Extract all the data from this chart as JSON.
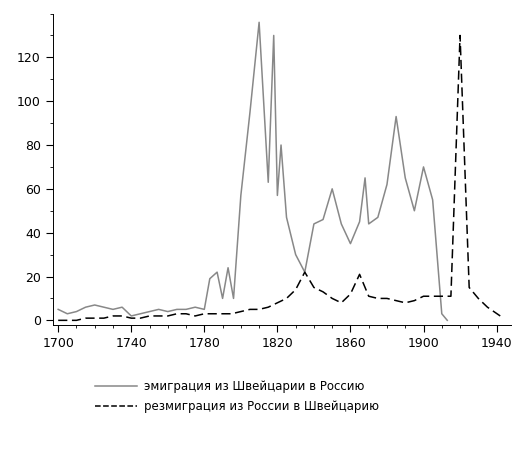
{
  "emigration_x": [
    1700,
    1705,
    1710,
    1715,
    1720,
    1725,
    1730,
    1735,
    1740,
    1745,
    1750,
    1755,
    1760,
    1765,
    1770,
    1775,
    1780,
    1783,
    1787,
    1790,
    1793,
    1796,
    1800,
    1805,
    1810,
    1815,
    1818,
    1820,
    1822,
    1825,
    1830,
    1835,
    1840,
    1845,
    1850,
    1855,
    1860,
    1865,
    1868,
    1870,
    1875,
    1880,
    1885,
    1890,
    1895,
    1900,
    1905,
    1910,
    1913
  ],
  "emigration_y": [
    5,
    3,
    4,
    6,
    7,
    6,
    5,
    6,
    2,
    3,
    4,
    5,
    4,
    5,
    5,
    6,
    5,
    19,
    22,
    10,
    24,
    10,
    57,
    95,
    136,
    63,
    130,
    57,
    80,
    47,
    30,
    22,
    44,
    46,
    60,
    44,
    35,
    45,
    65,
    44,
    47,
    62,
    93,
    65,
    50,
    70,
    55,
    3,
    0
  ],
  "remigration_x": [
    1700,
    1705,
    1710,
    1715,
    1720,
    1725,
    1730,
    1735,
    1740,
    1745,
    1750,
    1755,
    1760,
    1765,
    1770,
    1775,
    1780,
    1785,
    1790,
    1795,
    1800,
    1805,
    1810,
    1815,
    1820,
    1825,
    1830,
    1835,
    1840,
    1845,
    1850,
    1855,
    1860,
    1865,
    1870,
    1875,
    1880,
    1885,
    1890,
    1895,
    1900,
    1905,
    1910,
    1915,
    1920,
    1925,
    1930,
    1935,
    1942
  ],
  "remigration_y": [
    0,
    0,
    0,
    1,
    1,
    1,
    2,
    2,
    1,
    1,
    2,
    2,
    2,
    3,
    3,
    2,
    3,
    3,
    3,
    3,
    4,
    5,
    5,
    6,
    8,
    10,
    14,
    22,
    15,
    13,
    10,
    8,
    12,
    21,
    11,
    10,
    10,
    9,
    8,
    9,
    11,
    11,
    11,
    11,
    130,
    15,
    10,
    6,
    2
  ],
  "line1_color": "#888888",
  "line2_color": "#000000",
  "line1_label": "эмиграция из Швейцарии в Россию",
  "line2_label": "резмиграция из России в Швейцарию",
  "xlim": [
    1697,
    1948
  ],
  "ylim": [
    -2,
    140
  ],
  "xticks": [
    1700,
    1740,
    1780,
    1820,
    1860,
    1900,
    1940
  ],
  "yticks": [
    0,
    20,
    40,
    60,
    80,
    100,
    120
  ],
  "figsize": [
    5.27,
    4.51
  ],
  "dpi": 100,
  "background_color": "#ffffff",
  "legend_fontsize": 8.5,
  "tick_labelsize": 9
}
